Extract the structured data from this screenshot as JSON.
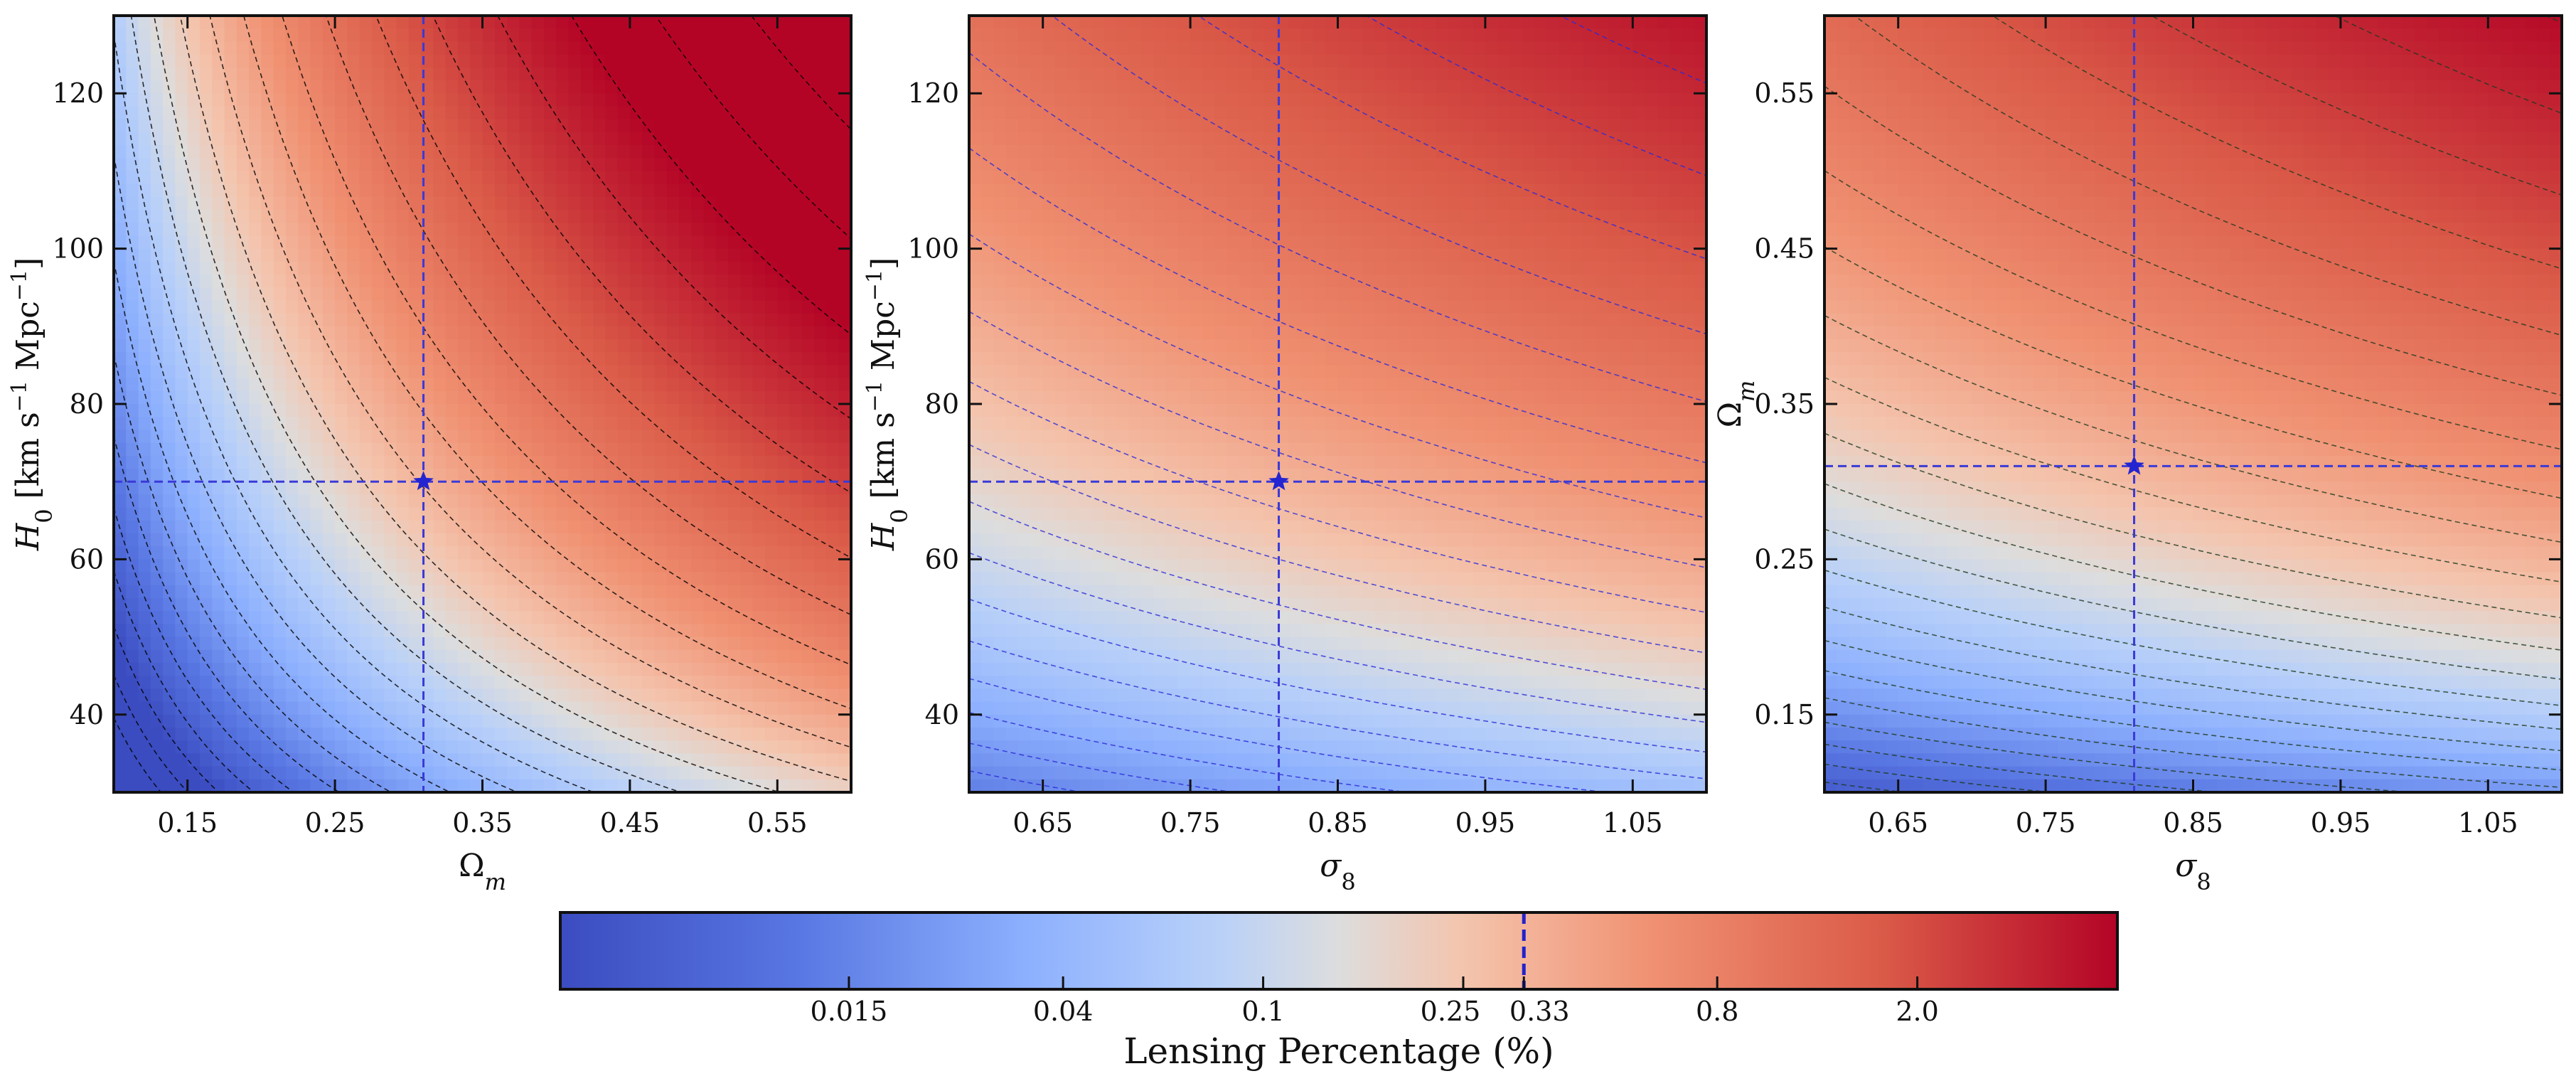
{
  "chart_data": [
    {
      "type": "heatmap",
      "panel": "H0 vs Omega_m",
      "xlabel": "Ω_m",
      "ylabel": "H_0 [km s^-1 Mpc^-1]",
      "xlim": [
        0.1,
        0.6
      ],
      "ylim": [
        30,
        130
      ],
      "xticks": [
        0.15,
        0.25,
        0.35,
        0.45,
        0.55
      ],
      "xtick_labels": [
        "0.15",
        "0.25",
        "0.35",
        "0.45",
        "0.55"
      ],
      "yticks": [
        40,
        60,
        80,
        100,
        120
      ],
      "ytick_labels": [
        "40",
        "60",
        "80",
        "100",
        "120"
      ],
      "fiducial": {
        "x": 0.31,
        "y": 70
      },
      "contour_color": "#000000",
      "contour_count": 24
    },
    {
      "type": "heatmap",
      "panel": "H0 vs sigma_8",
      "xlabel": "σ_8",
      "ylabel": "H_0 [km s^-1 Mpc^-1]",
      "xlim": [
        0.6,
        1.1
      ],
      "ylim": [
        30,
        130
      ],
      "xticks": [
        0.65,
        0.75,
        0.85,
        0.95,
        1.05
      ],
      "xtick_labels": [
        "0.65",
        "0.75",
        "0.85",
        "0.95",
        "1.05"
      ],
      "yticks": [
        40,
        60,
        80,
        100,
        120
      ],
      "ytick_labels": [
        "40",
        "60",
        "80",
        "100",
        "120"
      ],
      "fiducial": {
        "x": 0.81,
        "y": 70
      },
      "contour_color": "#2b2bd6",
      "contour_count": 30
    },
    {
      "type": "heatmap",
      "panel": "Omega_m vs sigma_8",
      "xlabel": "σ_8",
      "ylabel": "Ω_m",
      "xlim": [
        0.6,
        1.1
      ],
      "ylim": [
        0.1,
        0.6
      ],
      "xticks": [
        0.65,
        0.75,
        0.85,
        0.95,
        1.05
      ],
      "xtick_labels": [
        "0.65",
        "0.75",
        "0.85",
        "0.95",
        "1.05"
      ],
      "yticks": [
        0.15,
        0.25,
        0.35,
        0.45,
        0.55
      ],
      "ytick_labels": [
        "0.15",
        "0.25",
        "0.35",
        "0.45",
        "0.55"
      ],
      "fiducial": {
        "x": 0.81,
        "y": 0.31
      },
      "contour_color": "#1f3a1f",
      "contour_count": 30
    }
  ],
  "colorbar": {
    "label": "Lensing Percentage (%)",
    "scale": "log",
    "range": [
      0.004,
      5.0
    ],
    "ticks": [
      0.015,
      0.04,
      0.1,
      0.25,
      0.33,
      0.8,
      2.0
    ],
    "tick_labels": [
      "0.015",
      "0.04",
      "0.1",
      "0.25",
      "0.33",
      "0.8",
      "2.0"
    ],
    "marker_value": 0.33,
    "marker_color": "#2222cc",
    "colormap": "coolwarm",
    "colormap_low": "#3b4cc0",
    "colormap_mid": "#dddddd",
    "colormap_high": "#b40426"
  },
  "guide_line_color": "#3a3ad8"
}
